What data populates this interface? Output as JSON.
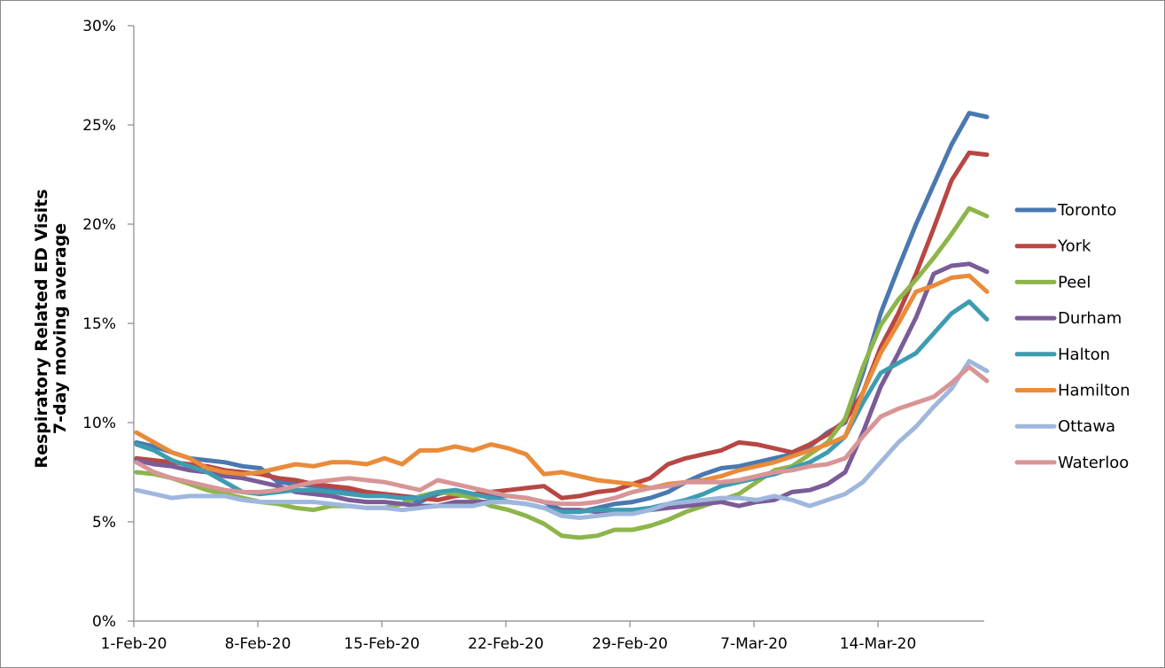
{
  "chart_data": {
    "type": "line",
    "title": "",
    "ylabel_line1": "Respiratory  Related ED Visits",
    "ylabel_line2": "7-day moving average",
    "xlabel": "",
    "ylim": [
      0,
      30
    ],
    "y_ticks": [
      "0%",
      "5%",
      "10%",
      "15%",
      "20%",
      "25%",
      "30%"
    ],
    "x_tick_labels": [
      "1-Feb-20",
      "8-Feb-20",
      "15-Feb-20",
      "22-Feb-20",
      "29-Feb-20",
      "7-Mar-20",
      "14-Mar-20"
    ],
    "x_dates": [
      "1-Feb",
      "2-Feb",
      "3-Feb",
      "4-Feb",
      "5-Feb",
      "6-Feb",
      "7-Feb",
      "8-Feb",
      "9-Feb",
      "10-Feb",
      "11-Feb",
      "12-Feb",
      "13-Feb",
      "14-Feb",
      "15-Feb",
      "16-Feb",
      "17-Feb",
      "18-Feb",
      "19-Feb",
      "20-Feb",
      "21-Feb",
      "22-Feb",
      "23-Feb",
      "24-Feb",
      "25-Feb",
      "26-Feb",
      "27-Feb",
      "28-Feb",
      "29-Feb",
      "1-Mar",
      "2-Mar",
      "3-Mar",
      "4-Mar",
      "5-Mar",
      "6-Mar",
      "7-Mar",
      "8-Mar",
      "9-Mar",
      "10-Mar",
      "11-Mar",
      "12-Mar",
      "13-Mar",
      "14-Mar",
      "15-Mar",
      "16-Mar",
      "17-Mar",
      "18-Mar",
      "19-Mar",
      "20-Mar"
    ],
    "grid": false,
    "legend_position": "right",
    "series": [
      {
        "name": "Toronto",
        "color": "#4a78b0",
        "values": [
          9.0,
          8.8,
          8.5,
          8.2,
          8.1,
          8.0,
          7.8,
          7.7,
          7.0,
          6.9,
          6.8,
          6.6,
          6.5,
          6.5,
          6.3,
          6.2,
          6.0,
          6.4,
          6.6,
          6.4,
          6.3,
          6.3,
          6.2,
          6.0,
          5.6,
          5.5,
          5.7,
          5.9,
          6.0,
          6.2,
          6.5,
          7.0,
          7.4,
          7.7,
          7.8,
          8.0,
          8.2,
          8.4,
          8.8,
          9.5,
          10.0,
          12.5,
          15.5,
          17.8,
          20.0,
          22.0,
          24.0,
          25.6,
          25.4
        ]
      },
      {
        "name": "York",
        "color": "#b84744",
        "values": [
          8.2,
          8.1,
          8.0,
          7.9,
          7.8,
          7.6,
          7.5,
          7.4,
          7.2,
          7.1,
          6.9,
          6.8,
          6.7,
          6.5,
          6.4,
          6.3,
          6.2,
          6.1,
          6.3,
          6.4,
          6.5,
          6.6,
          6.7,
          6.8,
          6.2,
          6.3,
          6.5,
          6.6,
          6.9,
          7.2,
          7.9,
          8.2,
          8.4,
          8.6,
          9.0,
          8.9,
          8.7,
          8.5,
          8.9,
          9.4,
          10.1,
          11.5,
          13.8,
          15.5,
          17.5,
          19.8,
          22.2,
          23.6,
          23.5
        ]
      },
      {
        "name": "Peel",
        "color": "#8db54b",
        "values": [
          7.5,
          7.4,
          7.2,
          6.9,
          6.6,
          6.4,
          6.2,
          6.0,
          5.9,
          5.7,
          5.6,
          5.8,
          5.8,
          5.7,
          5.7,
          5.9,
          6.3,
          6.5,
          6.4,
          6.2,
          5.8,
          5.6,
          5.3,
          4.9,
          4.3,
          4.2,
          4.3,
          4.6,
          4.6,
          4.8,
          5.1,
          5.5,
          5.8,
          6.1,
          6.4,
          7.0,
          7.6,
          7.8,
          8.4,
          9.0,
          10.2,
          12.8,
          14.9,
          16.2,
          17.2,
          18.3,
          19.5,
          20.8,
          20.4
        ]
      },
      {
        "name": "Durham",
        "color": "#7b5c97",
        "values": [
          8.1,
          7.9,
          7.8,
          7.6,
          7.5,
          7.3,
          7.2,
          7.0,
          6.8,
          6.5,
          6.4,
          6.3,
          6.1,
          6.0,
          6.0,
          5.9,
          5.8,
          5.8,
          6.0,
          6.0,
          6.0,
          6.0,
          5.9,
          5.7,
          5.6,
          5.6,
          5.5,
          5.5,
          5.5,
          5.6,
          5.7,
          5.8,
          5.9,
          6.0,
          5.8,
          6.0,
          6.1,
          6.5,
          6.6,
          6.9,
          7.5,
          9.5,
          11.8,
          13.5,
          15.3,
          17.5,
          17.9,
          18.0,
          17.6
        ]
      },
      {
        "name": "Halton",
        "color": "#3e9cb1",
        "values": [
          8.9,
          8.6,
          8.1,
          7.8,
          7.5,
          7.0,
          6.5,
          6.4,
          6.5,
          6.6,
          6.6,
          6.5,
          6.4,
          6.3,
          6.3,
          6.2,
          6.2,
          6.5,
          6.6,
          6.4,
          6.2,
          6.0,
          5.9,
          5.7,
          5.5,
          5.5,
          5.6,
          5.6,
          5.6,
          5.7,
          5.9,
          6.1,
          6.4,
          6.8,
          7.0,
          7.2,
          7.4,
          7.7,
          8.0,
          8.5,
          9.3,
          11.0,
          12.5,
          13.0,
          13.5,
          14.5,
          15.5,
          16.1,
          15.2
        ]
      },
      {
        "name": "Hamilton",
        "color": "#e98b39",
        "values": [
          9.5,
          9.0,
          8.5,
          8.2,
          7.7,
          7.5,
          7.4,
          7.5,
          7.7,
          7.9,
          7.8,
          8.0,
          8.0,
          7.9,
          8.2,
          7.9,
          8.6,
          8.6,
          8.8,
          8.6,
          8.9,
          8.7,
          8.4,
          7.4,
          7.5,
          7.3,
          7.1,
          7.0,
          6.9,
          6.7,
          6.9,
          7.0,
          7.1,
          7.3,
          7.6,
          7.8,
          8.0,
          8.3,
          8.6,
          8.9,
          9.3,
          11.5,
          13.5,
          15.0,
          16.6,
          16.9,
          17.3,
          17.4,
          16.6
        ]
      },
      {
        "name": "Ottawa",
        "color": "#9fb7dd",
        "values": [
          6.6,
          6.4,
          6.2,
          6.3,
          6.3,
          6.3,
          6.1,
          6.0,
          6.0,
          6.0,
          6.0,
          5.9,
          5.8,
          5.7,
          5.7,
          5.6,
          5.7,
          5.8,
          5.8,
          5.8,
          6.0,
          6.0,
          5.9,
          5.7,
          5.3,
          5.2,
          5.3,
          5.4,
          5.4,
          5.6,
          5.9,
          6.0,
          6.1,
          6.2,
          6.2,
          6.1,
          6.3,
          6.1,
          5.8,
          6.1,
          6.4,
          7.0,
          8.0,
          9.0,
          9.8,
          10.8,
          11.7,
          13.1,
          12.6
        ]
      },
      {
        "name": "Waterloo",
        "color": "#d89596",
        "values": [
          8.0,
          7.5,
          7.2,
          7.0,
          6.8,
          6.6,
          6.5,
          6.5,
          6.6,
          6.8,
          7.0,
          7.1,
          7.2,
          7.1,
          7.0,
          6.8,
          6.6,
          7.1,
          6.9,
          6.7,
          6.5,
          6.3,
          6.2,
          6.0,
          5.9,
          5.9,
          6.0,
          6.2,
          6.5,
          6.7,
          6.8,
          7.0,
          7.0,
          7.0,
          7.1,
          7.3,
          7.5,
          7.6,
          7.8,
          7.9,
          8.2,
          9.3,
          10.3,
          10.7,
          11.0,
          11.3,
          12.0,
          12.8,
          12.1
        ]
      }
    ]
  }
}
